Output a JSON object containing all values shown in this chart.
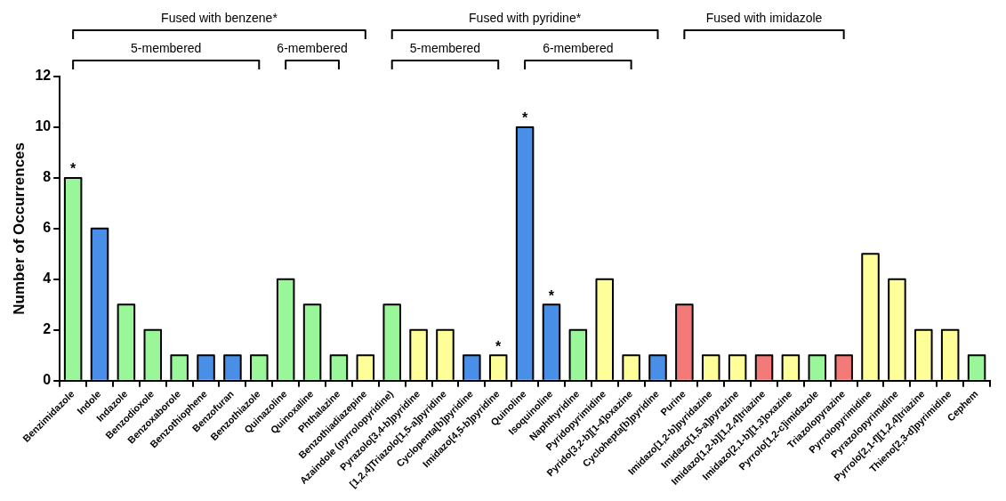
{
  "chart_data": {
    "type": "bar",
    "ylabel": "Number of Occurrences",
    "categories": [
      "Benzimidazole",
      "Indole",
      "Indazole",
      "Benzodioxole",
      "Benzoxaborole",
      "Benzothiophene",
      "Benzofuran",
      "Benzothiazole",
      "Quinazoline",
      "Quinoxaline",
      "Phthalazine",
      "Benzothiadiazepine",
      "Azaindole (pyrrolopyridine)",
      "Pyrazolo[3,4-b]pyridine",
      "[1,2,4]Triazolo[1,5-a]pyridine",
      "Cyclopenta[b]pyridine",
      "Imidazo[4,5-b]pyridine",
      "Quinoline",
      "Isoquinoline",
      "Naphthyridine",
      "Pyridopyrimidine",
      "Pyrido[3,2-b][1-4]oxazine",
      "Cyclohepta[b]pyridine",
      "Purine",
      "Imidazo[1,2-b]pyridazine",
      "Imidazo[1,5-a]pyrazine",
      "Imidazo[1,2-b][1,2,4]triazine",
      "Imidazo[2,1-b][1,3]oxazine",
      "Pyrrolo[1,2-c]imidazole",
      "Triazolopyrazine",
      "Pyrrolopyrimidine",
      "Pyrazolopyrimidine",
      "Pyrrolo[2,1-f][1,2,4]triazine",
      "Thieno[2,3-d]pyrimidine",
      "Cephem"
    ],
    "values": [
      8,
      6,
      3,
      2,
      1,
      1,
      1,
      1,
      4,
      3,
      1,
      1,
      3,
      2,
      2,
      1,
      1,
      10,
      3,
      2,
      4,
      1,
      1,
      3,
      1,
      1,
      1,
      1,
      1,
      1,
      5,
      4,
      2,
      2,
      1
    ],
    "colors": [
      "#99f799",
      "#4a8fe7",
      "#99f799",
      "#99f799",
      "#99f799",
      "#4a8fe7",
      "#4a8fe7",
      "#99f799",
      "#99f799",
      "#99f799",
      "#99f799",
      "#ffff99",
      "#99f799",
      "#ffff99",
      "#ffff99",
      "#4a8fe7",
      "#ffff99",
      "#4a8fe7",
      "#4a8fe7",
      "#99f799",
      "#ffff99",
      "#ffff99",
      "#4a8fe7",
      "#f47a7a",
      "#ffff99",
      "#ffff99",
      "#f47a7a",
      "#ffff99",
      "#99f799",
      "#f47a7a",
      "#ffff99",
      "#ffff99",
      "#ffff99",
      "#ffff99",
      "#99f799"
    ],
    "ylim": [
      0,
      12
    ],
    "yticks": [
      0,
      2,
      4,
      6,
      8,
      10,
      12
    ],
    "grid": false,
    "legend": false,
    "annotations": [
      "Fused with benzene*",
      "5-membered",
      "6-membered",
      "Fused with pyridine*",
      "5-membered",
      "6-membered",
      "Fused with imidazole",
      {
        "text": "*",
        "x": "Benzimidazole",
        "y": 8
      },
      {
        "text": "*",
        "x": "Imidazo[4,5-b]pyridine",
        "y": 1
      },
      {
        "text": "*",
        "x": "Quinoline",
        "y": 10
      },
      {
        "text": "*",
        "x": "Isoquinoline",
        "y": 3
      }
    ]
  }
}
